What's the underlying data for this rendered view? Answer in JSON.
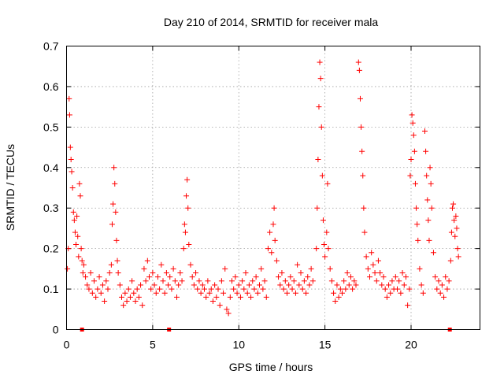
{
  "chart_data": {
    "type": "scatter",
    "title": "Day 210 of 2014, SRMTID for receiver mala",
    "xlabel": "GPS time / hours",
    "ylabel": "SRMTID / TECUs",
    "xlim": [
      0,
      24
    ],
    "ylim": [
      0,
      0.7
    ],
    "xticks": [
      "0",
      "5",
      "10",
      "15",
      "20"
    ],
    "yticks": [
      "0",
      "0.1",
      "0.2",
      "0.3",
      "0.4",
      "0.5",
      "0.6",
      "0.7"
    ],
    "grid": true,
    "marker": "+",
    "color": "#ff0000",
    "series": [
      {
        "name": "SRMTID",
        "points": [
          [
            0.05,
            0.15
          ],
          [
            0.1,
            0.2
          ],
          [
            0.15,
            0.57
          ],
          [
            0.18,
            0.53
          ],
          [
            0.22,
            0.45
          ],
          [
            0.26,
            0.42
          ],
          [
            0.3,
            0.39
          ],
          [
            0.35,
            0.35
          ],
          [
            0.4,
            0.29
          ],
          [
            0.45,
            0.27
          ],
          [
            0.5,
            0.24
          ],
          [
            0.55,
            0.21
          ],
          [
            0.6,
            0.28
          ],
          [
            0.65,
            0.23
          ],
          [
            0.7,
            0.18
          ],
          [
            0.75,
            0.36
          ],
          [
            0.8,
            0.33
          ],
          [
            0.85,
            0.2
          ],
          [
            0.9,
            0.17
          ],
          [
            0.95,
            0.14
          ],
          [
            1.0,
            0.16
          ],
          [
            1.1,
            0.13
          ],
          [
            1.2,
            0.11
          ],
          [
            1.3,
            0.1
          ],
          [
            1.4,
            0.14
          ],
          [
            1.5,
            0.09
          ],
          [
            1.6,
            0.12
          ],
          [
            1.7,
            0.08
          ],
          [
            1.8,
            0.1
          ],
          [
            1.9,
            0.13
          ],
          [
            2.0,
            0.09
          ],
          [
            2.1,
            0.11
          ],
          [
            2.2,
            0.07
          ],
          [
            2.3,
            0.12
          ],
          [
            2.4,
            0.1
          ],
          [
            2.5,
            0.14
          ],
          [
            2.6,
            0.16
          ],
          [
            2.65,
            0.26
          ],
          [
            2.7,
            0.31
          ],
          [
            2.75,
            0.4
          ],
          [
            2.8,
            0.36
          ],
          [
            2.85,
            0.29
          ],
          [
            2.9,
            0.22
          ],
          [
            2.95,
            0.17
          ],
          [
            3.0,
            0.14
          ],
          [
            3.1,
            0.11
          ],
          [
            3.2,
            0.08
          ],
          [
            3.3,
            0.06
          ],
          [
            3.4,
            0.09
          ],
          [
            3.5,
            0.07
          ],
          [
            3.6,
            0.1
          ],
          [
            3.7,
            0.08
          ],
          [
            3.8,
            0.12
          ],
          [
            3.9,
            0.09
          ],
          [
            4.0,
            0.07
          ],
          [
            4.1,
            0.1
          ],
          [
            4.2,
            0.08
          ],
          [
            4.3,
            0.11
          ],
          [
            4.4,
            0.06
          ],
          [
            4.5,
            0.15
          ],
          [
            4.6,
            0.12
          ],
          [
            4.7,
            0.17
          ],
          [
            4.8,
            0.13
          ],
          [
            4.9,
            0.1
          ],
          [
            5.0,
            0.14
          ],
          [
            5.1,
            0.11
          ],
          [
            5.2,
            0.09
          ],
          [
            5.3,
            0.13
          ],
          [
            5.4,
            0.1
          ],
          [
            5.5,
            0.16
          ],
          [
            5.6,
            0.12
          ],
          [
            5.7,
            0.09
          ],
          [
            5.8,
            0.14
          ],
          [
            5.9,
            0.11
          ],
          [
            6.0,
            0.13
          ],
          [
            6.1,
            0.1
          ],
          [
            6.2,
            0.15
          ],
          [
            6.3,
            0.12
          ],
          [
            6.4,
            0.08
          ],
          [
            6.5,
            0.11
          ],
          [
            6.6,
            0.14
          ],
          [
            6.7,
            0.12
          ],
          [
            6.8,
            0.2
          ],
          [
            6.85,
            0.26
          ],
          [
            6.9,
            0.24
          ],
          [
            6.95,
            0.33
          ],
          [
            7.0,
            0.37
          ],
          [
            7.05,
            0.3
          ],
          [
            7.1,
            0.21
          ],
          [
            7.2,
            0.16
          ],
          [
            7.3,
            0.13
          ],
          [
            7.4,
            0.11
          ],
          [
            7.5,
            0.14
          ],
          [
            7.6,
            0.1
          ],
          [
            7.7,
            0.12
          ],
          [
            7.8,
            0.09
          ],
          [
            7.9,
            0.11
          ],
          [
            8.0,
            0.1
          ],
          [
            8.1,
            0.08
          ],
          [
            8.2,
            0.12
          ],
          [
            8.3,
            0.09
          ],
          [
            8.4,
            0.1
          ],
          [
            8.5,
            0.07
          ],
          [
            8.6,
            0.11
          ],
          [
            8.7,
            0.08
          ],
          [
            8.8,
            0.1
          ],
          [
            8.9,
            0.06
          ],
          [
            9.0,
            0.12
          ],
          [
            9.1,
            0.09
          ],
          [
            9.2,
            0.15
          ],
          [
            9.3,
            0.05
          ],
          [
            9.4,
            0.04
          ],
          [
            9.5,
            0.08
          ],
          [
            9.6,
            0.12
          ],
          [
            9.7,
            0.1
          ],
          [
            9.8,
            0.13
          ],
          [
            9.9,
            0.09
          ],
          [
            10.0,
            0.11
          ],
          [
            10.1,
            0.08
          ],
          [
            10.2,
            0.12
          ],
          [
            10.3,
            0.1
          ],
          [
            10.4,
            0.14
          ],
          [
            10.5,
            0.09
          ],
          [
            10.6,
            0.11
          ],
          [
            10.7,
            0.08
          ],
          [
            10.8,
            0.12
          ],
          [
            10.9,
            0.1
          ],
          [
            11.0,
            0.13
          ],
          [
            11.1,
            0.09
          ],
          [
            11.2,
            0.11
          ],
          [
            11.3,
            0.15
          ],
          [
            11.4,
            0.1
          ],
          [
            11.5,
            0.12
          ],
          [
            11.6,
            0.08
          ],
          [
            11.7,
            0.2
          ],
          [
            11.8,
            0.24
          ],
          [
            11.9,
            0.19
          ],
          [
            12.0,
            0.26
          ],
          [
            12.05,
            0.3
          ],
          [
            12.1,
            0.22
          ],
          [
            12.2,
            0.17
          ],
          [
            12.3,
            0.13
          ],
          [
            12.4,
            0.11
          ],
          [
            12.5,
            0.14
          ],
          [
            12.6,
            0.1
          ],
          [
            12.7,
            0.12
          ],
          [
            12.8,
            0.09
          ],
          [
            12.9,
            0.11
          ],
          [
            13.0,
            0.13
          ],
          [
            13.1,
            0.1
          ],
          [
            13.2,
            0.12
          ],
          [
            13.3,
            0.09
          ],
          [
            13.4,
            0.16
          ],
          [
            13.5,
            0.11
          ],
          [
            13.6,
            0.14
          ],
          [
            13.7,
            0.1
          ],
          [
            13.8,
            0.12
          ],
          [
            13.9,
            0.09
          ],
          [
            14.0,
            0.13
          ],
          [
            14.1,
            0.11
          ],
          [
            14.2,
            0.15
          ],
          [
            14.3,
            0.12
          ],
          [
            14.5,
            0.2
          ],
          [
            14.55,
            0.3
          ],
          [
            14.6,
            0.42
          ],
          [
            14.65,
            0.55
          ],
          [
            14.7,
            0.66
          ],
          [
            14.75,
            0.62
          ],
          [
            14.8,
            0.5
          ],
          [
            14.85,
            0.38
          ],
          [
            14.9,
            0.27
          ],
          [
            14.95,
            0.21
          ],
          [
            15.0,
            0.18
          ],
          [
            15.1,
            0.24
          ],
          [
            15.15,
            0.36
          ],
          [
            15.2,
            0.2
          ],
          [
            15.3,
            0.15
          ],
          [
            15.4,
            0.12
          ],
          [
            15.5,
            0.09
          ],
          [
            15.6,
            0.07
          ],
          [
            15.7,
            0.11
          ],
          [
            15.8,
            0.08
          ],
          [
            15.9,
            0.1
          ],
          [
            16.0,
            0.09
          ],
          [
            16.1,
            0.12
          ],
          [
            16.2,
            0.1
          ],
          [
            16.3,
            0.14
          ],
          [
            16.4,
            0.11
          ],
          [
            16.5,
            0.13
          ],
          [
            16.6,
            0.1
          ],
          [
            16.7,
            0.12
          ],
          [
            16.8,
            0.11
          ],
          [
            16.95,
            0.66
          ],
          [
            17.0,
            0.64
          ],
          [
            17.05,
            0.57
          ],
          [
            17.1,
            0.5
          ],
          [
            17.15,
            0.44
          ],
          [
            17.2,
            0.38
          ],
          [
            17.25,
            0.3
          ],
          [
            17.3,
            0.24
          ],
          [
            17.4,
            0.18
          ],
          [
            17.5,
            0.15
          ],
          [
            17.6,
            0.13
          ],
          [
            17.7,
            0.19
          ],
          [
            17.8,
            0.16
          ],
          [
            17.9,
            0.14
          ],
          [
            18.0,
            0.12
          ],
          [
            18.1,
            0.17
          ],
          [
            18.2,
            0.14
          ],
          [
            18.3,
            0.11
          ],
          [
            18.4,
            0.13
          ],
          [
            18.5,
            0.1
          ],
          [
            18.6,
            0.08
          ],
          [
            18.7,
            0.11
          ],
          [
            18.8,
            0.09
          ],
          [
            18.9,
            0.12
          ],
          [
            19.0,
            0.1
          ],
          [
            19.1,
            0.13
          ],
          [
            19.2,
            0.1
          ],
          [
            19.3,
            0.12
          ],
          [
            19.4,
            0.09
          ],
          [
            19.5,
            0.14
          ],
          [
            19.6,
            0.11
          ],
          [
            19.7,
            0.13
          ],
          [
            19.8,
            0.06
          ],
          [
            19.9,
            0.1
          ],
          [
            19.95,
            0.38
          ],
          [
            20.0,
            0.42
          ],
          [
            20.05,
            0.53
          ],
          [
            20.1,
            0.51
          ],
          [
            20.15,
            0.48
          ],
          [
            20.2,
            0.44
          ],
          [
            20.25,
            0.36
          ],
          [
            20.3,
            0.3
          ],
          [
            20.35,
            0.26
          ],
          [
            20.4,
            0.22
          ],
          [
            20.5,
            0.15
          ],
          [
            20.6,
            0.11
          ],
          [
            20.7,
            0.09
          ],
          [
            20.8,
            0.49
          ],
          [
            20.85,
            0.44
          ],
          [
            20.9,
            0.38
          ],
          [
            20.95,
            0.32
          ],
          [
            21.0,
            0.27
          ],
          [
            21.05,
            0.22
          ],
          [
            21.1,
            0.4
          ],
          [
            21.15,
            0.36
          ],
          [
            21.2,
            0.3
          ],
          [
            21.3,
            0.19
          ],
          [
            21.4,
            0.13
          ],
          [
            21.5,
            0.1
          ],
          [
            21.6,
            0.12
          ],
          [
            21.7,
            0.09
          ],
          [
            21.8,
            0.11
          ],
          [
            21.9,
            0.08
          ],
          [
            22.0,
            0.13
          ],
          [
            22.1,
            0.1
          ],
          [
            22.2,
            0.12
          ],
          [
            22.3,
            0.17
          ],
          [
            22.35,
            0.24
          ],
          [
            22.4,
            0.3
          ],
          [
            22.45,
            0.31
          ],
          [
            22.5,
            0.27
          ],
          [
            22.55,
            0.23
          ],
          [
            22.6,
            0.28
          ],
          [
            22.65,
            0.25
          ],
          [
            22.7,
            0.2
          ],
          [
            22.75,
            0.18
          ]
        ]
      }
    ],
    "axis_markers": [
      0.9,
      5.95,
      22.25
    ]
  }
}
